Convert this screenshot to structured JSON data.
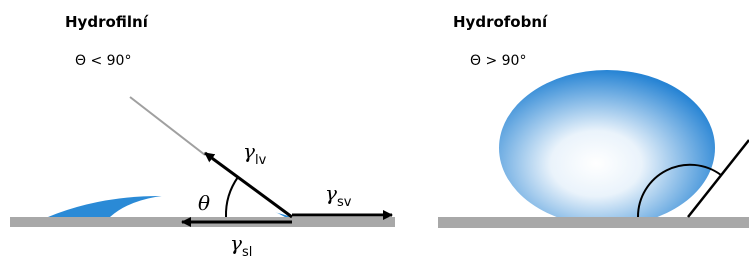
{
  "panels": [
    {
      "title": "Hydrofilní",
      "angle_label": "Θ < 90°",
      "theta": "θ",
      "gamma_lv": {
        "symbol": "γ",
        "subscript": "lv"
      },
      "gamma_sv": {
        "symbol": "γ",
        "subscript": "sv"
      },
      "gamma_sl": {
        "symbol": "γ",
        "subscript": "sl"
      }
    },
    {
      "title": "Hydrofobní",
      "angle_label": "Θ > 90°"
    }
  ]
}
